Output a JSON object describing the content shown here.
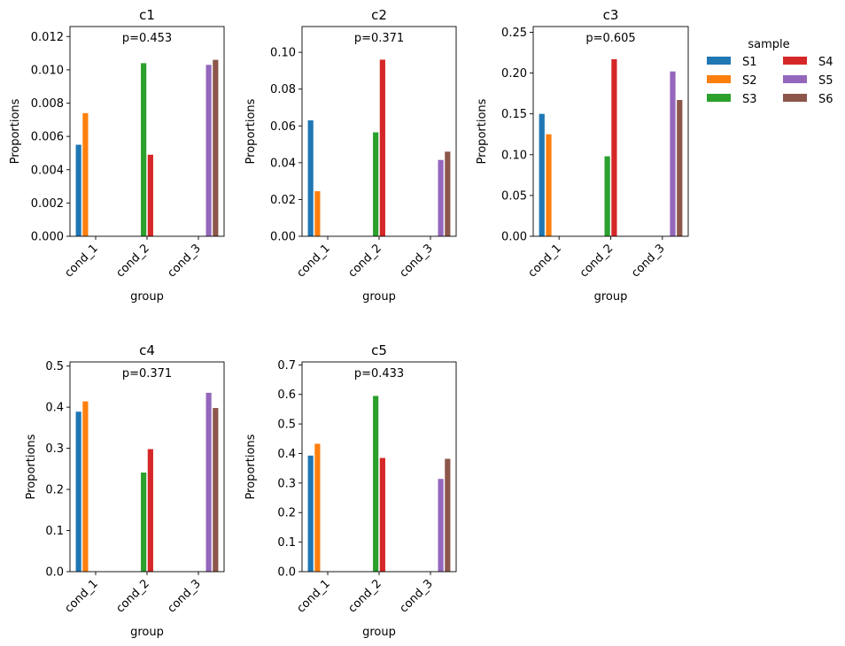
{
  "chart_data": {
    "type": "bar",
    "layout": "grouped bar facets, 2 rows x 3 columns",
    "x_axis_label": "group",
    "y_axis_label": "Proportions",
    "categories": [
      "cond_1",
      "cond_2",
      "cond_3"
    ],
    "legend": {
      "title": "sample",
      "placement": "upper right, outside plots, 2 columns",
      "entries": [
        {
          "name": "S1",
          "color": "#1f77b4"
        },
        {
          "name": "S2",
          "color": "#ff7f0e"
        },
        {
          "name": "S3",
          "color": "#2ca02c"
        },
        {
          "name": "S4",
          "color": "#d62728"
        },
        {
          "name": "S5",
          "color": "#9467bd"
        },
        {
          "name": "S6",
          "color": "#8c564b"
        }
      ]
    },
    "panels": [
      {
        "title": "c1",
        "annotation": "p=0.453",
        "ylim": [
          0,
          0.0126
        ],
        "yticks": [
          0.0,
          0.002,
          0.004,
          0.006,
          0.008,
          0.01,
          0.012
        ],
        "ytick_labels": [
          "0.000",
          "0.002",
          "0.004",
          "0.006",
          "0.008",
          "0.010",
          "0.012"
        ],
        "series": [
          {
            "name": "S1",
            "values": [
              0.0055,
              null,
              null
            ]
          },
          {
            "name": "S2",
            "values": [
              0.0074,
              null,
              null
            ]
          },
          {
            "name": "S3",
            "values": [
              null,
              0.0104,
              null
            ]
          },
          {
            "name": "S4",
            "values": [
              null,
              0.0049,
              null
            ]
          },
          {
            "name": "S5",
            "values": [
              null,
              null,
              0.0103
            ]
          },
          {
            "name": "S6",
            "values": [
              null,
              null,
              0.0106
            ]
          }
        ]
      },
      {
        "title": "c2",
        "annotation": "p=0.371",
        "ylim": [
          0,
          0.114
        ],
        "yticks": [
          0.0,
          0.02,
          0.04,
          0.06,
          0.08,
          0.1
        ],
        "ytick_labels": [
          "0.00",
          "0.02",
          "0.04",
          "0.06",
          "0.08",
          "0.10"
        ],
        "series": [
          {
            "name": "S1",
            "values": [
              0.063,
              null,
              null
            ]
          },
          {
            "name": "S2",
            "values": [
              0.0245,
              null,
              null
            ]
          },
          {
            "name": "S3",
            "values": [
              null,
              0.0565,
              null
            ]
          },
          {
            "name": "S4",
            "values": [
              null,
              0.096,
              null
            ]
          },
          {
            "name": "S5",
            "values": [
              null,
              null,
              0.0415
            ]
          },
          {
            "name": "S6",
            "values": [
              null,
              null,
              0.046
            ]
          }
        ]
      },
      {
        "title": "c3",
        "annotation": "p=0.605",
        "ylim": [
          0,
          0.257
        ],
        "yticks": [
          0.0,
          0.05,
          0.1,
          0.15,
          0.2,
          0.25
        ],
        "ytick_labels": [
          "0.00",
          "0.05",
          "0.10",
          "0.15",
          "0.20",
          "0.25"
        ],
        "series": [
          {
            "name": "S1",
            "values": [
              0.15,
              null,
              null
            ]
          },
          {
            "name": "S2",
            "values": [
              0.125,
              null,
              null
            ]
          },
          {
            "name": "S3",
            "values": [
              null,
              0.098,
              null
            ]
          },
          {
            "name": "S4",
            "values": [
              null,
              0.217,
              null
            ]
          },
          {
            "name": "S5",
            "values": [
              null,
              null,
              0.202
            ]
          },
          {
            "name": "S6",
            "values": [
              null,
              null,
              0.167
            ]
          }
        ]
      },
      {
        "title": "c4",
        "annotation": "p=0.371",
        "ylim": [
          0,
          0.51
        ],
        "yticks": [
          0.0,
          0.1,
          0.2,
          0.3,
          0.4,
          0.5
        ],
        "ytick_labels": [
          "0.0",
          "0.1",
          "0.2",
          "0.3",
          "0.4",
          "0.5"
        ],
        "series": [
          {
            "name": "S1",
            "values": [
              0.389,
              null,
              null
            ]
          },
          {
            "name": "S2",
            "values": [
              0.414,
              null,
              null
            ]
          },
          {
            "name": "S3",
            "values": [
              null,
              0.241,
              null
            ]
          },
          {
            "name": "S4",
            "values": [
              null,
              0.298,
              null
            ]
          },
          {
            "name": "S5",
            "values": [
              null,
              null,
              0.435
            ]
          },
          {
            "name": "S6",
            "values": [
              null,
              null,
              0.398
            ]
          }
        ]
      },
      {
        "title": "c5",
        "annotation": "p=0.433",
        "ylim": [
          0,
          0.71
        ],
        "yticks": [
          0.0,
          0.1,
          0.2,
          0.3,
          0.4,
          0.5,
          0.6,
          0.7
        ],
        "ytick_labels": [
          "0.0",
          "0.1",
          "0.2",
          "0.3",
          "0.4",
          "0.5",
          "0.6",
          "0.7"
        ],
        "series": [
          {
            "name": "S1",
            "values": [
              0.393,
              null,
              null
            ]
          },
          {
            "name": "S2",
            "values": [
              0.433,
              null,
              null
            ]
          },
          {
            "name": "S3",
            "values": [
              null,
              0.595,
              null
            ]
          },
          {
            "name": "S4",
            "values": [
              null,
              0.385,
              null
            ]
          },
          {
            "name": "S5",
            "values": [
              null,
              null,
              0.314
            ]
          },
          {
            "name": "S6",
            "values": [
              null,
              null,
              0.382
            ]
          }
        ]
      }
    ]
  }
}
